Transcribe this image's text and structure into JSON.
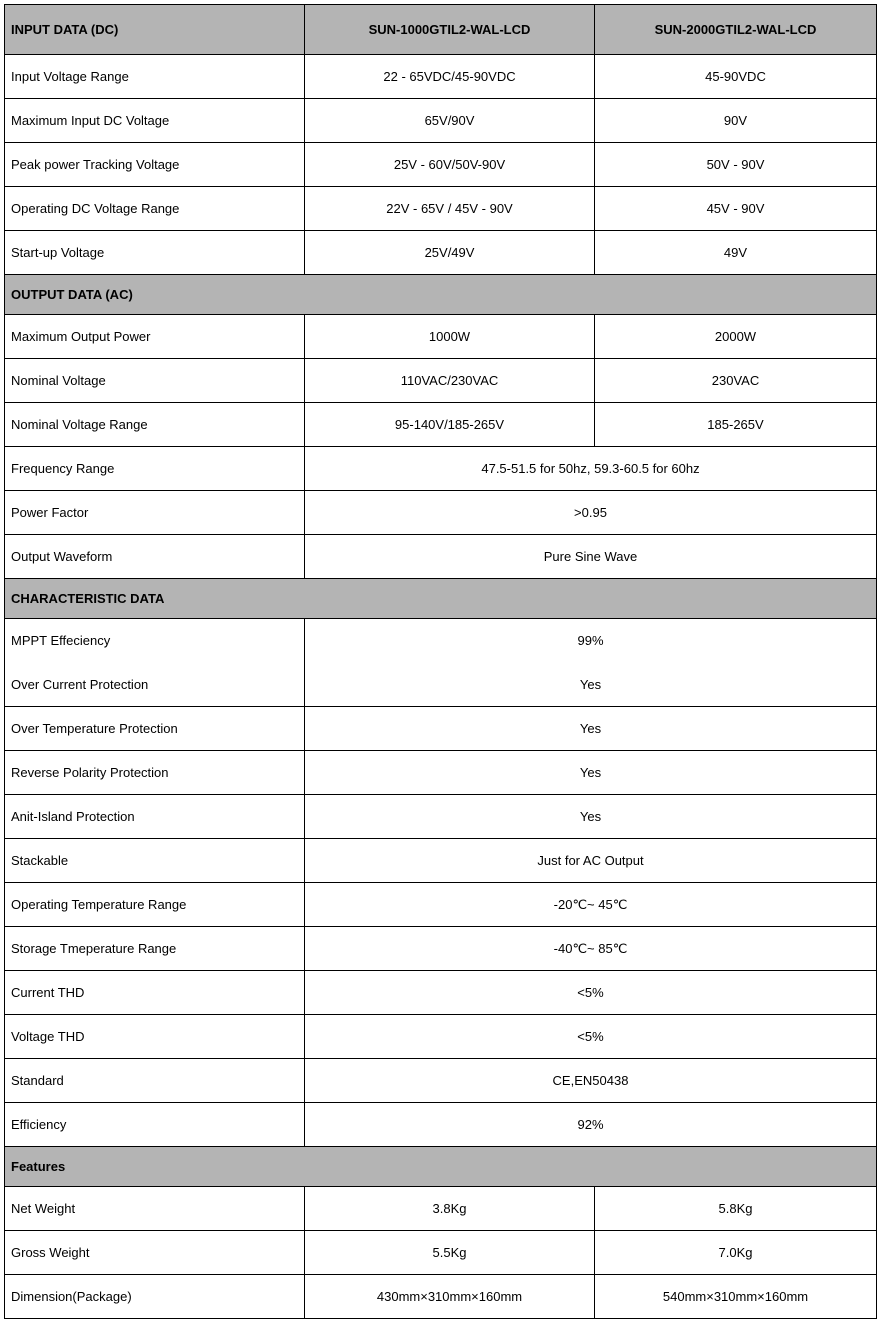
{
  "table": {
    "header": {
      "label": "INPUT DATA (DC)",
      "model1": "SUN-1000GTIL2-WAL-LCD",
      "model2": "SUN-2000GTIL2-WAL-LCD"
    },
    "input": {
      "voltage_range": {
        "label": "Input Voltage Range",
        "v1": "22 - 65VDC/45-90VDC",
        "v2": "45-90VDC"
      },
      "max_dc_voltage": {
        "label": "Maximum Input DC Voltage",
        "v1": "65V/90V",
        "v2": "90V"
      },
      "peak_tracking": {
        "label": "Peak power Tracking Voltage",
        "v1": "25V - 60V/50V-90V",
        "v2": "50V - 90V"
      },
      "operating_dc_range": {
        "label": "Operating DC Voltage Range",
        "v1": "22V - 65V / 45V - 90V",
        "v2": "45V - 90V"
      },
      "startup_voltage": {
        "label": "Start-up Voltage",
        "v1": "25V/49V",
        "v2": "49V"
      }
    },
    "output_header": "OUTPUT DATA (AC)",
    "output": {
      "max_power": {
        "label": "Maximum Output Power",
        "v1": "1000W",
        "v2": "2000W"
      },
      "nominal_voltage": {
        "label": "Nominal Voltage",
        "v1": "110VAC/230VAC",
        "v2": "230VAC"
      },
      "nominal_range": {
        "label": "Nominal Voltage Range",
        "v1": "95-140V/185-265V",
        "v2": "185-265V"
      },
      "frequency_range": {
        "label": "Frequency Range",
        "v": "47.5-51.5 for 50hz, 59.3-60.5 for 60hz"
      },
      "power_factor": {
        "label": "Power Factor",
        "v": ">0.95"
      },
      "output_waveform": {
        "label": "Output Waveform",
        "v": "Pure Sine Wave"
      }
    },
    "char_header": "CHARACTERISTIC DATA",
    "char": {
      "mppt_eff": {
        "label": "MPPT Effeciency",
        "v": "99%"
      },
      "over_current": {
        "label": "Over Current Protection",
        "v": "Yes"
      },
      "over_temp": {
        "label": "Over Temperature Protection",
        "v": "Yes"
      },
      "reverse_polarity": {
        "label": "Reverse Polarity Protection",
        "v": "Yes"
      },
      "anti_island": {
        "label": "Anit-Island Protection",
        "v": "Yes"
      },
      "stackable": {
        "label": "Stackable",
        "v": "Just for AC Output"
      },
      "operating_temp": {
        "label": "Operating Temperature Range",
        "v": "-20℃~ 45℃"
      },
      "storage_temp": {
        "label": "Storage Tmeperature Range",
        "v": "-40℃~ 85℃"
      },
      "current_thd": {
        "label": "Current THD",
        "v": "<5%"
      },
      "voltage_thd": {
        "label": "Voltage THD",
        "v": "<5%"
      },
      "standard": {
        "label": "Standard",
        "v": "CE,EN50438"
      },
      "efficiency": {
        "label": "Efficiency",
        "v": "92%"
      }
    },
    "features_header": "Features",
    "features": {
      "net_weight": {
        "label": "Net Weight",
        "v1": "3.8Kg",
        "v2": "5.8Kg"
      },
      "gross_weight": {
        "label": "Gross Weight",
        "v1": "5.5Kg",
        "v2": "7.0Kg"
      },
      "dimension": {
        "label": "Dimension(Package)",
        "v1": "430mm×310mm×160mm",
        "v2": "540mm×310mm×160mm"
      }
    }
  }
}
